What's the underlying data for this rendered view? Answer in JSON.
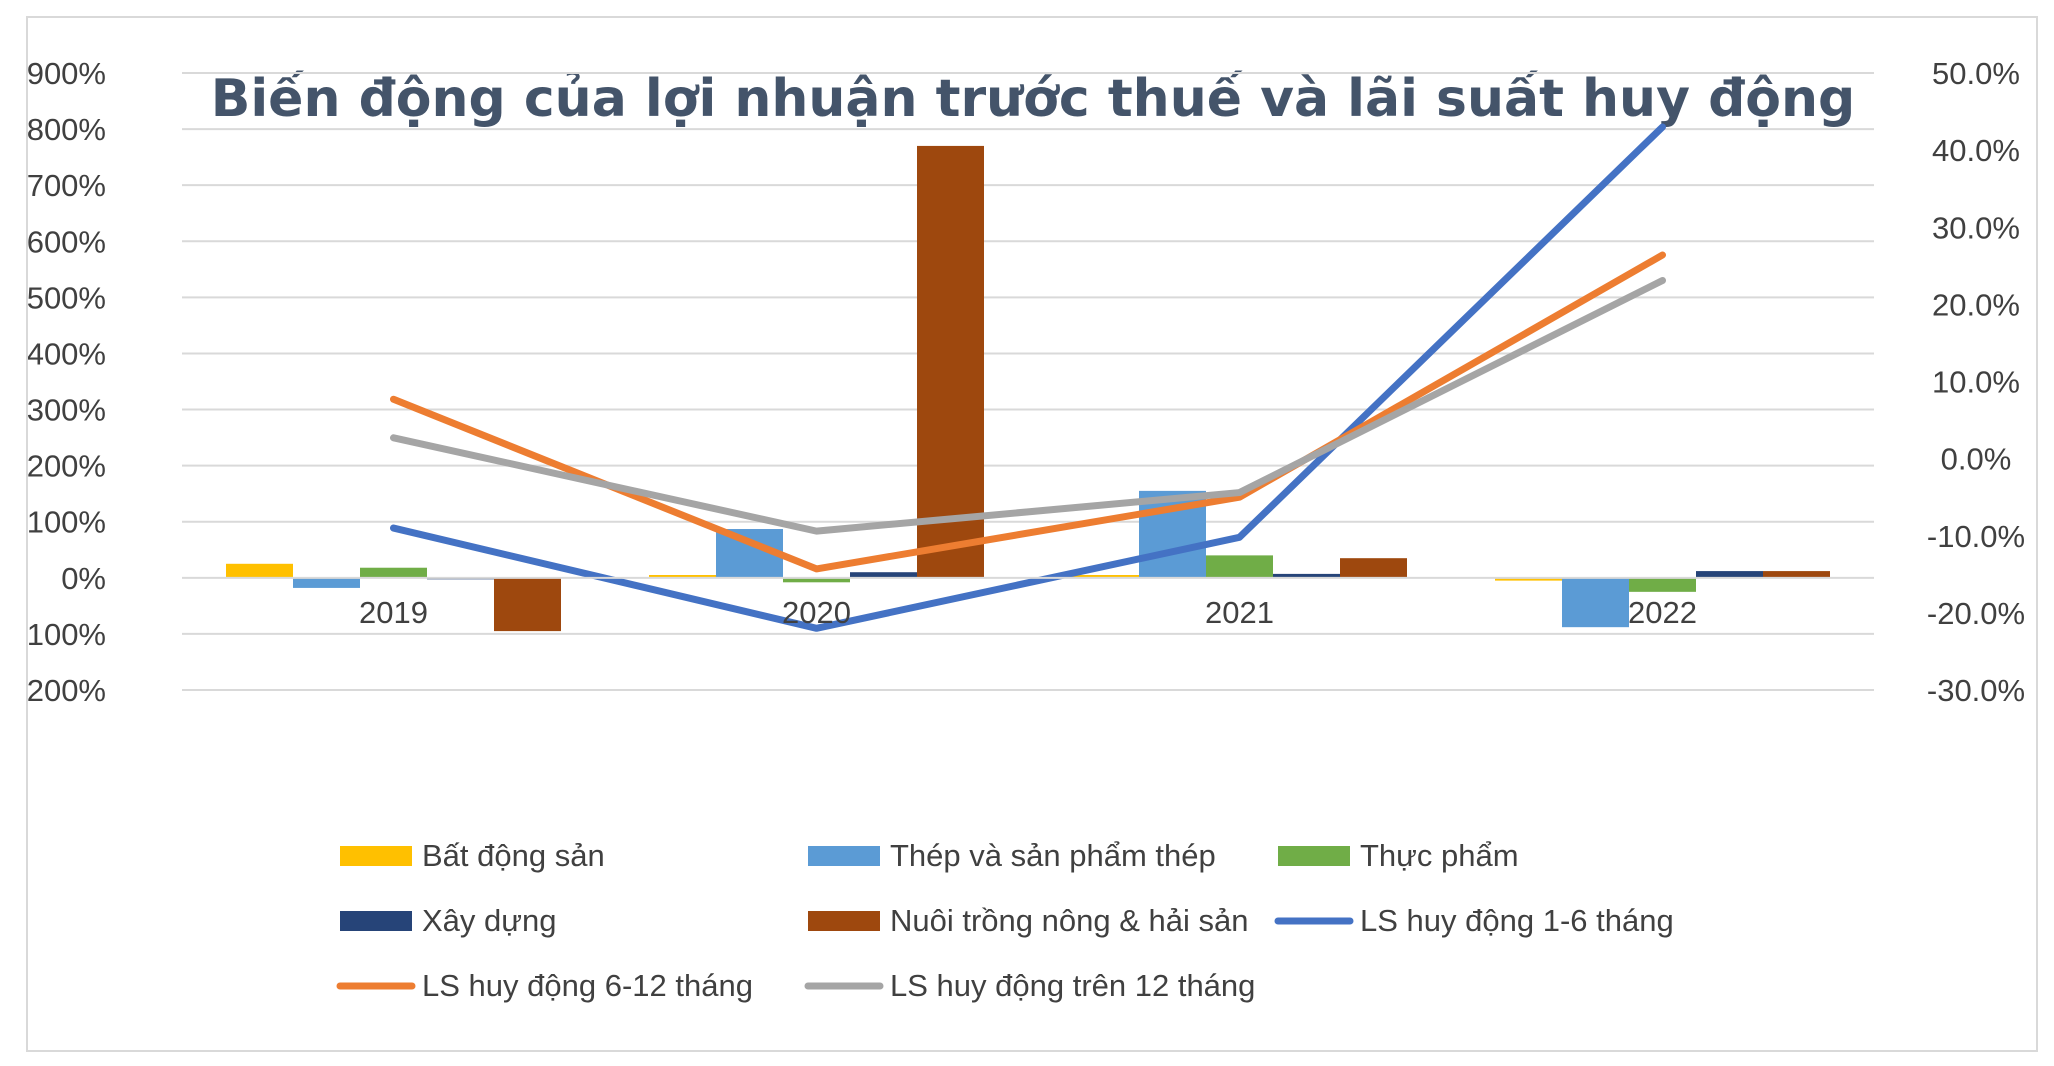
{
  "chart_data": {
    "type": "bar",
    "title": "Biến động của lợi nhuận trước thuế và lãi suất huy động",
    "categories": [
      "2019",
      "2020",
      "2021",
      "2022"
    ],
    "y_left": {
      "min": -200,
      "max": 900,
      "step": 100,
      "tick_labels": [
        "-200%",
        "-100%",
        "0%",
        "100%",
        "200%",
        "300%",
        "400%",
        "500%",
        "600%",
        "700%",
        "800%",
        "900%"
      ]
    },
    "y_right": {
      "min": -30,
      "max": 50,
      "step": 10,
      "tick_labels": [
        "-30.0%",
        "-20.0%",
        "-10.0%",
        "0.0%",
        "10.0%",
        "20.0%",
        "30.0%",
        "40.0%",
        "50.0%"
      ]
    },
    "grid": true,
    "legend_position": "bottom",
    "bar_series": [
      {
        "name": "Bất động sản",
        "color": "#ffc000",
        "values": [
          25,
          5,
          5,
          -5
        ]
      },
      {
        "name": "Thép và sản phẩm thép",
        "color": "#5b9bd5",
        "values": [
          -18,
          87,
          155,
          -88
        ]
      },
      {
        "name": "Thực phẩm",
        "color": "#70ad47",
        "values": [
          18,
          -8,
          40,
          -25
        ]
      },
      {
        "name": "Xây dựng",
        "color": "#264478",
        "values": [
          0,
          10,
          7,
          12
        ]
      },
      {
        "name": "Nuôi trồng nông & hải sản",
        "color": "#9e480e",
        "values": [
          -95,
          770,
          35,
          12
        ]
      }
    ],
    "line_series": [
      {
        "name": "LS huy động 1-6 tháng",
        "color": "#4472c4",
        "axis": "right",
        "values": [
          -9.0,
          -22.0,
          -10.2,
          43.0
        ]
      },
      {
        "name": "LS huy động 6-12 tháng",
        "color": "#ed7d31",
        "axis": "right",
        "values": [
          7.7,
          -14.3,
          -5.0,
          26.4
        ]
      },
      {
        "name": "LS huy động trên 12 tháng",
        "color": "#a5a5a5",
        "axis": "right",
        "values": [
          2.7,
          -9.4,
          -4.4,
          23.1
        ]
      }
    ]
  }
}
